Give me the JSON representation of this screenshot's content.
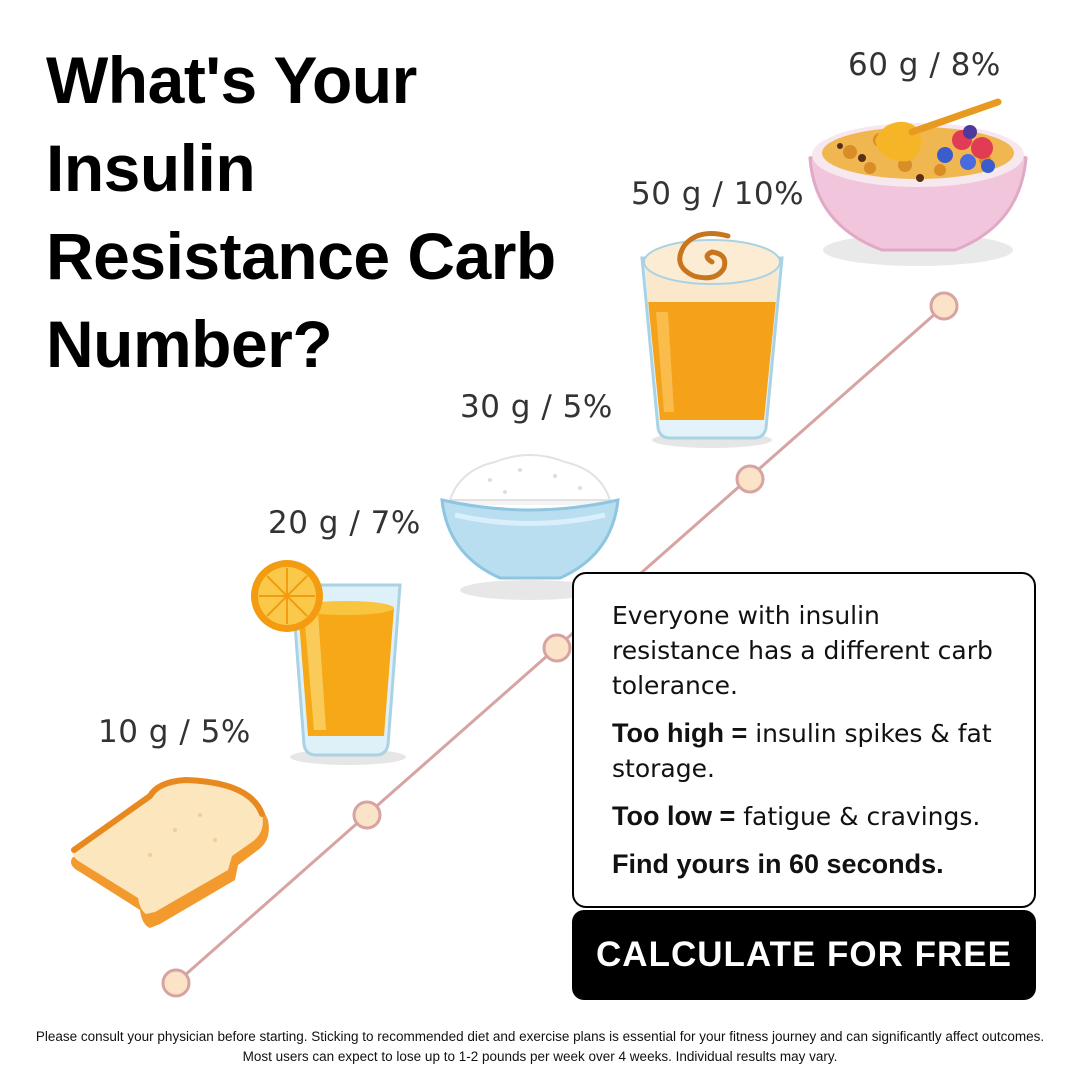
{
  "headline": "What's Your Insulin Resistance Carb Number?",
  "steps": [
    {
      "label": "10 g / 5%",
      "food_icon": "bread-slice-icon"
    },
    {
      "label": "20 g / 7%",
      "food_icon": "orange-juice-icon"
    },
    {
      "label": "30 g / 5%",
      "food_icon": "rice-bowl-icon"
    },
    {
      "label": "50 g / 10%",
      "food_icon": "latte-glass-icon"
    },
    {
      "label": "60 g / 8%",
      "food_icon": "granola-bowl-icon"
    }
  ],
  "info": {
    "intro": "Everyone with insulin resistance has a different carb tolerance.",
    "too_high_label": "Too high =",
    "too_high_text": "insulin spikes & fat storage.",
    "too_low_label": "Too low =",
    "too_low_text": "fatigue & cravings.",
    "closing": "Find yours in 60 seconds."
  },
  "cta_label": "CALCULATE FOR FREE",
  "disclaimer": "Please consult your physician before starting. Sticking to recommended diet and exercise plans is essential for your fitness journey and can significantly affect outcomes. Most users can expect to lose up to 1-2 pounds per week over 4 weeks. Individual results may vary.",
  "colors": {
    "accent_line": "#d7a3a3",
    "dot_fill": "#fbe3c7",
    "cta_bg": "#000000",
    "cta_text": "#ffffff"
  }
}
